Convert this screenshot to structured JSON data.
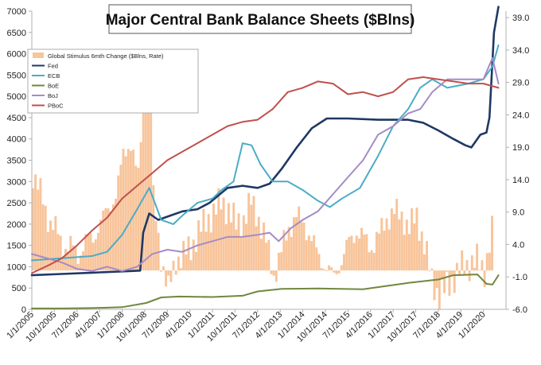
{
  "chart_data": {
    "type": "line",
    "title": "Major Central Bank Balance Sheets ($Blns)",
    "legend_position": "top-left",
    "grid": false,
    "x_ticks": [
      "1/1/2005",
      "10/1/2005",
      "7/1/2006",
      "4/1/2007",
      "1/1/2008",
      "10/1/2008",
      "7/1/2009",
      "4/1/2010",
      "1/1/2011",
      "10/1/2011",
      "7/1/2012",
      "4/1/2013",
      "1/1/2014",
      "10/1/2014",
      "7/1/2015",
      "4/1/2016",
      "1/1/2017",
      "10/1/2017",
      "7/1/2018",
      "4/1/2019",
      "1/1/2020"
    ],
    "x_range": [
      2005.0,
      2020.75
    ],
    "y_left": {
      "range": [
        0,
        7000
      ],
      "ticks": [
        "0",
        "500",
        "1000",
        "1500",
        "2000",
        "2500",
        "3000",
        "3500",
        "4000",
        "4500",
        "5000",
        "5500",
        "6000",
        "6500",
        "7000"
      ]
    },
    "y_right": {
      "range": [
        -6,
        40
      ],
      "ticks": [
        "-6.0",
        "-1.0",
        "4.0",
        "9.0",
        "14.0",
        "19.0",
        "24.0",
        "29.0",
        "34.0",
        "39.0"
      ]
    },
    "bars": {
      "name": "Global Stimulus 6mth Change ($Blns, Rate)",
      "color": "#f8c49a",
      "axis": "right",
      "points": [
        [
          2005.0,
          15.0
        ],
        [
          2005.25,
          12.0
        ],
        [
          2005.5,
          8.0
        ],
        [
          2005.75,
          6.5
        ],
        [
          2006.0,
          3.5
        ],
        [
          2006.25,
          4.0
        ],
        [
          2006.5,
          2.0
        ],
        [
          2006.75,
          5.0
        ],
        [
          2007.0,
          4.5
        ],
        [
          2007.25,
          8.0
        ],
        [
          2007.5,
          9.0
        ],
        [
          2007.75,
          12.0
        ],
        [
          2008.0,
          17.5
        ],
        [
          2008.25,
          20.0
        ],
        [
          2008.5,
          14.0
        ],
        [
          2008.75,
          33.0
        ],
        [
          2008.9,
          28.0
        ],
        [
          2009.0,
          11.0
        ],
        [
          2009.25,
          2.0
        ],
        [
          2009.5,
          -3.0
        ],
        [
          2009.75,
          1.5
        ],
        [
          2010.0,
          2.5
        ],
        [
          2010.25,
          3.5
        ],
        [
          2010.5,
          6.0
        ],
        [
          2010.75,
          7.5
        ],
        [
          2011.0,
          9.0
        ],
        [
          2011.25,
          10.5
        ],
        [
          2011.5,
          9.5
        ],
        [
          2011.75,
          7.0
        ],
        [
          2012.0,
          8.0
        ],
        [
          2012.25,
          10.5
        ],
        [
          2012.5,
          8.0
        ],
        [
          2012.75,
          4.5
        ],
        [
          2013.0,
          -1.0
        ],
        [
          2013.25,
          3.0
        ],
        [
          2013.5,
          6.5
        ],
        [
          2013.75,
          8.5
        ],
        [
          2014.0,
          7.0
        ],
        [
          2014.25,
          5.0
        ],
        [
          2014.5,
          2.0
        ],
        [
          2014.75,
          0.5
        ],
        [
          2015.0,
          -1.0
        ],
        [
          2015.25,
          1.5
        ],
        [
          2015.5,
          4.5
        ],
        [
          2015.75,
          6.0
        ],
        [
          2016.0,
          5.0
        ],
        [
          2016.25,
          3.5
        ],
        [
          2016.5,
          5.5
        ],
        [
          2016.75,
          8.0
        ],
        [
          2017.0,
          9.0
        ],
        [
          2017.25,
          8.5
        ],
        [
          2017.5,
          6.5
        ],
        [
          2017.75,
          8.5
        ],
        [
          2018.0,
          4.0
        ],
        [
          2018.25,
          -1.5
        ],
        [
          2018.5,
          -4.0
        ],
        [
          2018.75,
          -2.5
        ],
        [
          2019.0,
          -1.0
        ],
        [
          2019.25,
          0.5
        ],
        [
          2019.5,
          1.0
        ],
        [
          2019.75,
          1.5
        ],
        [
          2020.0,
          0.0
        ],
        [
          2020.25,
          6.0
        ]
      ]
    },
    "series": [
      {
        "name": "Fed",
        "color": "#1f3864",
        "axis": "left",
        "width": 2.6,
        "points": [
          [
            2005.0,
            800
          ],
          [
            2006.0,
            830
          ],
          [
            2007.0,
            860
          ],
          [
            2008.0,
            890
          ],
          [
            2008.6,
            910
          ],
          [
            2008.7,
            1800
          ],
          [
            2008.9,
            2250
          ],
          [
            2009.2,
            2100
          ],
          [
            2009.6,
            2200
          ],
          [
            2010.0,
            2300
          ],
          [
            2010.5,
            2350
          ],
          [
            2010.9,
            2500
          ],
          [
            2011.5,
            2850
          ],
          [
            2012.0,
            2900
          ],
          [
            2012.5,
            2850
          ],
          [
            2012.9,
            2950
          ],
          [
            2013.3,
            3300
          ],
          [
            2013.8,
            3800
          ],
          [
            2014.3,
            4250
          ],
          [
            2014.8,
            4480
          ],
          [
            2015.5,
            4480
          ],
          [
            2016.5,
            4450
          ],
          [
            2017.5,
            4450
          ],
          [
            2018.0,
            4380
          ],
          [
            2018.5,
            4200
          ],
          [
            2019.0,
            4000
          ],
          [
            2019.4,
            3850
          ],
          [
            2019.6,
            3800
          ],
          [
            2019.9,
            4100
          ],
          [
            2020.1,
            4150
          ],
          [
            2020.2,
            4500
          ],
          [
            2020.35,
            6500
          ],
          [
            2020.5,
            7100
          ]
        ]
      },
      {
        "name": "ECB",
        "color": "#4bacc6",
        "axis": "left",
        "width": 2.0,
        "points": [
          [
            2005.0,
            1150
          ],
          [
            2006.0,
            1200
          ],
          [
            2007.0,
            1250
          ],
          [
            2007.5,
            1350
          ],
          [
            2008.0,
            1750
          ],
          [
            2008.5,
            2350
          ],
          [
            2008.9,
            2850
          ],
          [
            2009.3,
            2100
          ],
          [
            2009.7,
            2000
          ],
          [
            2010.0,
            2200
          ],
          [
            2010.5,
            2500
          ],
          [
            2011.0,
            2600
          ],
          [
            2011.3,
            2800
          ],
          [
            2011.7,
            3000
          ],
          [
            2012.0,
            3900
          ],
          [
            2012.3,
            3850
          ],
          [
            2012.6,
            3400
          ],
          [
            2013.0,
            3000
          ],
          [
            2013.5,
            3000
          ],
          [
            2014.0,
            2800
          ],
          [
            2014.5,
            2550
          ],
          [
            2014.9,
            2400
          ],
          [
            2015.3,
            2600
          ],
          [
            2015.9,
            2850
          ],
          [
            2016.5,
            3600
          ],
          [
            2017.0,
            4300
          ],
          [
            2017.5,
            4700
          ],
          [
            2017.9,
            5200
          ],
          [
            2018.3,
            5400
          ],
          [
            2018.8,
            5200
          ],
          [
            2019.5,
            5300
          ],
          [
            2020.0,
            5400
          ],
          [
            2020.3,
            5700
          ],
          [
            2020.5,
            6200
          ]
        ]
      },
      {
        "name": "BoE",
        "color": "#70883e",
        "axis": "left",
        "width": 2.0,
        "points": [
          [
            2005.0,
            20
          ],
          [
            2006.0,
            20
          ],
          [
            2007.0,
            30
          ],
          [
            2008.0,
            50
          ],
          [
            2008.8,
            150
          ],
          [
            2009.3,
            280
          ],
          [
            2009.9,
            300
          ],
          [
            2011.0,
            290
          ],
          [
            2012.0,
            320
          ],
          [
            2012.5,
            420
          ],
          [
            2013.3,
            480
          ],
          [
            2014.5,
            490
          ],
          [
            2016.0,
            470
          ],
          [
            2016.8,
            550
          ],
          [
            2017.5,
            620
          ],
          [
            2018.5,
            700
          ],
          [
            2019.0,
            800
          ],
          [
            2019.8,
            820
          ],
          [
            2020.1,
            600
          ],
          [
            2020.3,
            580
          ],
          [
            2020.5,
            800
          ]
        ]
      },
      {
        "name": "BoJ",
        "color": "#a58bc7",
        "axis": "left",
        "width": 2.0,
        "points": [
          [
            2005.0,
            1300
          ],
          [
            2005.5,
            1200
          ],
          [
            2006.0,
            1100
          ],
          [
            2006.5,
            950
          ],
          [
            2007.0,
            900
          ],
          [
            2007.5,
            1000
          ],
          [
            2008.0,
            900
          ],
          [
            2008.5,
            1000
          ],
          [
            2009.0,
            1300
          ],
          [
            2009.5,
            1400
          ],
          [
            2010.0,
            1350
          ],
          [
            2010.5,
            1500
          ],
          [
            2011.0,
            1600
          ],
          [
            2011.5,
            1700
          ],
          [
            2012.0,
            1700
          ],
          [
            2012.5,
            1750
          ],
          [
            2012.9,
            1800
          ],
          [
            2013.2,
            1600
          ],
          [
            2013.6,
            1900
          ],
          [
            2014.0,
            2100
          ],
          [
            2014.5,
            2300
          ],
          [
            2015.0,
            2700
          ],
          [
            2015.5,
            3100
          ],
          [
            2016.0,
            3500
          ],
          [
            2016.5,
            4100
          ],
          [
            2017.0,
            4300
          ],
          [
            2017.5,
            4600
          ],
          [
            2017.9,
            4700
          ],
          [
            2018.3,
            5100
          ],
          [
            2018.8,
            5400
          ],
          [
            2019.5,
            5400
          ],
          [
            2020.0,
            5400
          ],
          [
            2020.3,
            5900
          ],
          [
            2020.5,
            5300
          ]
        ]
      },
      {
        "name": "PBoC",
        "color": "#c0504d",
        "axis": "left",
        "width": 2.0,
        "points": [
          [
            2005.0,
            850
          ],
          [
            2005.6,
            1050
          ],
          [
            2006.0,
            1200
          ],
          [
            2006.5,
            1500
          ],
          [
            2007.0,
            1850
          ],
          [
            2007.5,
            2150
          ],
          [
            2008.0,
            2600
          ],
          [
            2008.5,
            2900
          ],
          [
            2009.0,
            3200
          ],
          [
            2009.5,
            3500
          ],
          [
            2010.0,
            3700
          ],
          [
            2010.5,
            3900
          ],
          [
            2011.0,
            4100
          ],
          [
            2011.5,
            4300
          ],
          [
            2012.0,
            4400
          ],
          [
            2012.5,
            4450
          ],
          [
            2013.0,
            4700
          ],
          [
            2013.5,
            5100
          ],
          [
            2014.0,
            5200
          ],
          [
            2014.5,
            5350
          ],
          [
            2015.0,
            5300
          ],
          [
            2015.5,
            5050
          ],
          [
            2016.0,
            5100
          ],
          [
            2016.5,
            5000
          ],
          [
            2017.0,
            5100
          ],
          [
            2017.5,
            5400
          ],
          [
            2018.0,
            5450
          ],
          [
            2018.5,
            5400
          ],
          [
            2019.0,
            5350
          ],
          [
            2019.5,
            5300
          ],
          [
            2020.0,
            5300
          ],
          [
            2020.5,
            5200
          ]
        ]
      }
    ]
  }
}
